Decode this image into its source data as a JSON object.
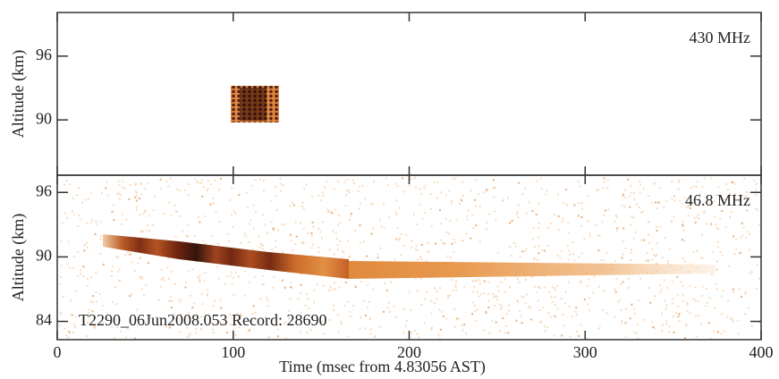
{
  "chart_data": [
    {
      "type": "heatmap",
      "ylabel": "Altitude (km)",
      "annotation": "430 MHz",
      "xlim": [
        0,
        400
      ],
      "xticks": [
        0,
        100,
        200,
        300,
        400
      ],
      "ylim": [
        84.8,
        100.1
      ],
      "yticks": [
        90,
        96
      ]
    },
    {
      "type": "heatmap",
      "ylabel": "Altitude (km)",
      "annotation": "46.8 MHz",
      "note": "T2290_06Jun2008.053 Record: 28690",
      "xlabel": "Time (msec from 4.83056 AST)",
      "xlim": [
        0,
        400
      ],
      "xticks": [
        0,
        100,
        200,
        300,
        400
      ],
      "ylim": [
        82.3,
        97.6
      ],
      "yticks": [
        84,
        90,
        96
      ]
    }
  ]
}
